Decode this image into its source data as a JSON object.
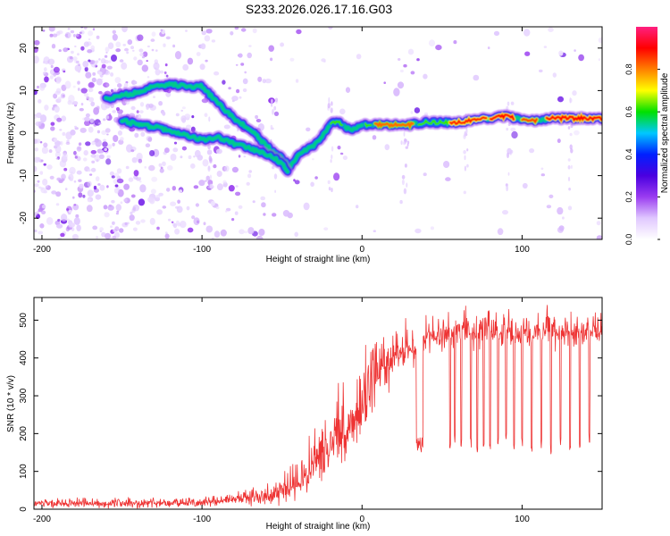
{
  "figure_title": "S233.2026.026.17.16.G03",
  "chart_data": [
    {
      "type": "heatmap",
      "title": "S233.2026.026.17.16.G03",
      "xlabel": "Height of straight line (km)",
      "ylabel": "Frequency (Hz)",
      "xlim": [
        -205,
        150
      ],
      "ylim": [
        -25,
        25
      ],
      "x_ticks": [
        -200,
        -100,
        0,
        100
      ],
      "y_ticks": [
        -20,
        -10,
        0,
        10,
        20
      ],
      "colorbar": {
        "label": "Normalized spectral amplitude",
        "range": [
          0.0,
          1.0
        ],
        "ticks": [
          0.0,
          0.2,
          0.4,
          0.6,
          0.8
        ],
        "tick_labels": [
          "0.0",
          "0.2",
          "0.4",
          "0.6",
          "0.8"
        ],
        "colormap": [
          "#ffffff",
          "#e0c8ff",
          "#9a3cf0",
          "#4a00e0",
          "#0020ff",
          "#00c8ff",
          "#00e000",
          "#ffff00",
          "#ff8000",
          "#ff0000",
          "#ff2080"
        ]
      },
      "ridges": [
        {
          "name": "upper branch",
          "points": [
            [
              -160,
              8
            ],
            [
              -150,
              9
            ],
            [
              -140,
              9.5
            ],
            [
              -130,
              11
            ],
            [
              -120,
              11.5
            ],
            [
              -110,
              11
            ],
            [
              -100,
              11
            ],
            [
              -90,
              7
            ],
            [
              -80,
              3.5
            ],
            [
              -70,
              1
            ],
            [
              -60,
              -3
            ],
            [
              -50,
              -6
            ],
            [
              -45,
              -8
            ],
            [
              -40,
              -5
            ],
            [
              -35,
              -4
            ],
            [
              -30,
              -3
            ],
            [
              -25,
              -1
            ],
            [
              -20,
              2
            ],
            [
              -15,
              3
            ],
            [
              -10,
              1
            ],
            [
              -5,
              1
            ],
            [
              0,
              2
            ],
            [
              10,
              2
            ],
            [
              20,
              2
            ],
            [
              30,
              2
            ],
            [
              40,
              2.5
            ],
            [
              50,
              2.5
            ],
            [
              60,
              2.5
            ],
            [
              70,
              3
            ],
            [
              80,
              3.5
            ],
            [
              90,
              4
            ],
            [
              100,
              3
            ],
            [
              110,
              3
            ],
            [
              120,
              3.5
            ],
            [
              130,
              3.5
            ],
            [
              150,
              3.5
            ]
          ]
        },
        {
          "name": "lower branch",
          "points": [
            [
              -150,
              3
            ],
            [
              -140,
              2
            ],
            [
              -130,
              1.5
            ],
            [
              -120,
              0.5
            ],
            [
              -110,
              -0.5
            ],
            [
              -100,
              -1.5
            ],
            [
              -90,
              -1
            ],
            [
              -80,
              -2.5
            ],
            [
              -70,
              -3.5
            ],
            [
              -60,
              -5
            ],
            [
              -50,
              -7
            ],
            [
              -46,
              -9
            ]
          ]
        }
      ]
    },
    {
      "type": "line",
      "xlabel": "Height of straight line (km)",
      "ylabel": "SNR (10 * v/v)",
      "xlim": [
        -205,
        150
      ],
      "ylim": [
        0,
        560
      ],
      "x_ticks": [
        -200,
        -100,
        0,
        100
      ],
      "y_ticks": [
        0,
        100,
        200,
        300,
        400,
        500
      ],
      "series_color": "#ee3333",
      "envelope": {
        "x": [
          -205,
          -180,
          -150,
          -120,
          -100,
          -80,
          -60,
          -50,
          -40,
          -30,
          -20,
          -10,
          0,
          10,
          20,
          30,
          35,
          40,
          50,
          60,
          80,
          100,
          120,
          150
        ],
        "base": [
          15,
          15,
          15,
          15,
          18,
          25,
          35,
          50,
          60,
          120,
          170,
          220,
          280,
          350,
          400,
          430,
          430,
          460,
          460,
          470,
          470,
          470,
          470,
          470
        ],
        "amp": [
          15,
          15,
          15,
          15,
          15,
          25,
          40,
          55,
          55,
          100,
          120,
          130,
          120,
          100,
          80,
          70,
          60,
          60,
          60,
          60,
          60,
          60,
          60,
          60
        ]
      },
      "dropouts": [
        {
          "x_range": [
            34,
            38
          ],
          "value": 170
        },
        {
          "x": 55,
          "value": 160
        },
        {
          "x": 58,
          "value": 190
        },
        {
          "x": 62,
          "value": 170
        },
        {
          "x": 68,
          "value": 175
        },
        {
          "x": 72,
          "value": 150
        },
        {
          "x": 76,
          "value": 180
        },
        {
          "x": 80,
          "value": 160
        },
        {
          "x": 85,
          "value": 175
        },
        {
          "x": 90,
          "value": 190
        },
        {
          "x": 95,
          "value": 160
        },
        {
          "x": 100,
          "value": 180
        },
        {
          "x": 106,
          "value": 155
        },
        {
          "x": 112,
          "value": 170
        },
        {
          "x": 118,
          "value": 160
        },
        {
          "x": 124,
          "value": 180
        },
        {
          "x": 130,
          "value": 150
        },
        {
          "x": 136,
          "value": 170
        },
        {
          "x": 142,
          "value": 190
        }
      ]
    }
  ]
}
